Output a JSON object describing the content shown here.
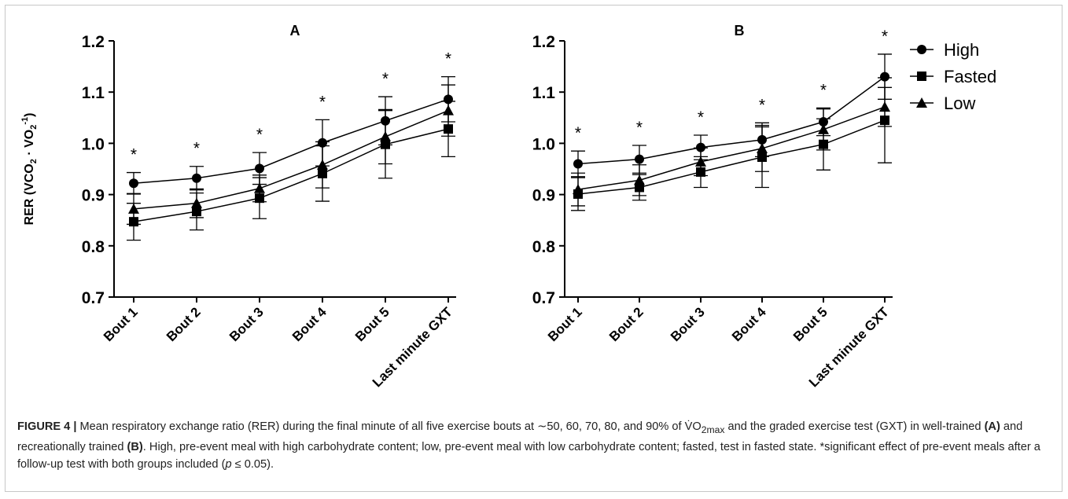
{
  "chart_data": [
    {
      "type": "line",
      "panel": "A",
      "ylabel": "RER (VCO2 · VO2-1)",
      "ylim": [
        0.7,
        1.2
      ],
      "yticks": [
        "0.7",
        "0.8",
        "0.9",
        "1.0",
        "1.1",
        "1.2"
      ],
      "categories": [
        "Bout 1",
        "Bout 2",
        "Bout 3",
        "Bout 4",
        "Bout 5",
        "Last minute GXT"
      ],
      "significance": [
        "*",
        "*",
        "*",
        "*",
        "*",
        "*"
      ],
      "series": [
        {
          "name": "High",
          "marker": "circle",
          "values": [
            0.922,
            0.932,
            0.951,
            1.001,
            1.044,
            1.086
          ],
          "err": [
            0.021,
            0.023,
            0.031,
            0.045,
            0.047,
            0.044
          ]
        },
        {
          "name": "Fasted",
          "marker": "square",
          "values": [
            0.847,
            0.867,
            0.893,
            0.941,
            0.998,
            1.028
          ],
          "err": [
            0.036,
            0.036,
            0.04,
            0.054,
            0.066,
            0.054
          ]
        },
        {
          "name": "Low",
          "marker": "triangle",
          "values": [
            0.872,
            0.883,
            0.912,
            0.958,
            1.013,
            1.064
          ],
          "err": [
            0.03,
            0.028,
            0.026,
            0.045,
            0.053,
            0.05
          ]
        }
      ]
    },
    {
      "type": "line",
      "panel": "B",
      "ylabel": "",
      "ylim": [
        0.7,
        1.2
      ],
      "yticks": [
        "0.7",
        "0.8",
        "0.9",
        "1.0",
        "1.1",
        "1.2"
      ],
      "categories": [
        "Bout 1",
        "Bout 2",
        "Bout 3",
        "Bout 4",
        "Bout 5",
        "Last minute GXT"
      ],
      "significance": [
        "*",
        "*",
        "*",
        "*",
        "*",
        "*"
      ],
      "series": [
        {
          "name": "High",
          "marker": "circle",
          "values": [
            0.96,
            0.969,
            0.992,
            1.007,
            1.042,
            1.13
          ],
          "err": [
            0.025,
            0.027,
            0.024,
            0.033,
            0.027,
            0.044
          ]
        },
        {
          "name": "Fasted",
          "marker": "square",
          "values": [
            0.901,
            0.914,
            0.944,
            0.973,
            0.998,
            1.045
          ],
          "err": [
            0.032,
            0.025,
            0.03,
            0.059,
            0.05,
            0.083
          ]
        },
        {
          "name": "Low",
          "marker": "triangle",
          "values": [
            0.91,
            0.928,
            0.964,
            0.99,
            1.027,
            1.071
          ],
          "err": [
            0.032,
            0.03,
            0.027,
            0.045,
            0.04,
            0.038
          ]
        }
      ]
    }
  ],
  "legend": {
    "placement": "right",
    "items": [
      {
        "label": "High",
        "marker": "circle"
      },
      {
        "label": "Fasted",
        "marker": "square"
      },
      {
        "label": "Low",
        "marker": "triangle"
      }
    ]
  },
  "caption": {
    "figure_label": "FIGURE 4 |",
    "p1": " Mean respiratory exchange ratio (RER) during the final minute of all five exercise bouts at ∼50, 60, 70, 80, and 90% of V̇O",
    "p1_sub": "2max",
    "p2": " and the graded exercise test (GXT) in well-trained ",
    "p2_bold": "(A)",
    "p3": " and recreationally trained ",
    "p3_bold": "(B)",
    "p4": ". High, pre-event meal with high carbohydrate content; low, pre-event meal with low carbohydrate content; fasted, test in fasted state. *significant effect of pre-event meals after a follow-up test with both groups included (",
    "p4_italic": "p",
    "p5": " ≤ 0.05)."
  }
}
